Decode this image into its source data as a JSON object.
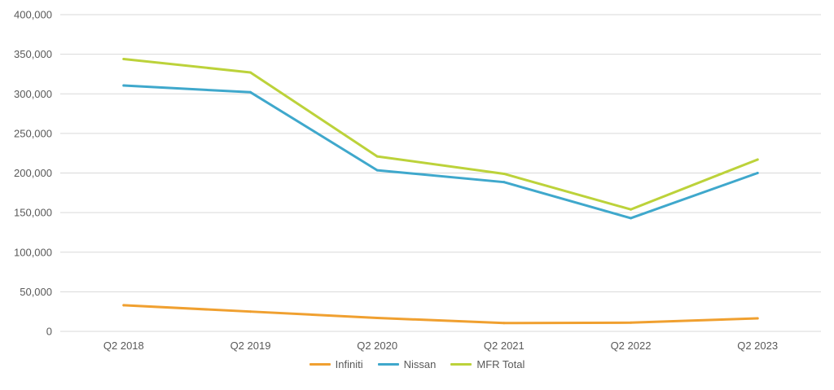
{
  "chart_data": {
    "type": "line",
    "title": "",
    "xlabel": "",
    "ylabel": "",
    "categories": [
      "Q2 2018",
      "Q2 2019",
      "Q2 2020",
      "Q2 2021",
      "Q2 2022",
      "Q2 2023"
    ],
    "ylim": [
      0,
      400000
    ],
    "yticks": [
      0,
      50000,
      100000,
      150000,
      200000,
      250000,
      300000,
      350000,
      400000
    ],
    "ytick_labels": [
      "0",
      "50,000",
      "100,000",
      "150,000",
      "200,000",
      "250,000",
      "300,000",
      "350,000",
      "400,000"
    ],
    "grid": "horizontal",
    "legend_position": "bottom",
    "series": [
      {
        "name": "Infiniti",
        "color": "#F0A030",
        "values": [
          33000,
          25000,
          17000,
          10500,
          11000,
          16500
        ]
      },
      {
        "name": "Nissan",
        "color": "#3FA8CC",
        "values": [
          310500,
          302000,
          203500,
          188500,
          143000,
          200000
        ]
      },
      {
        "name": "MFR Total",
        "color": "#BCD23A",
        "values": [
          344000,
          327000,
          221000,
          199000,
          154000,
          217000
        ]
      }
    ]
  }
}
